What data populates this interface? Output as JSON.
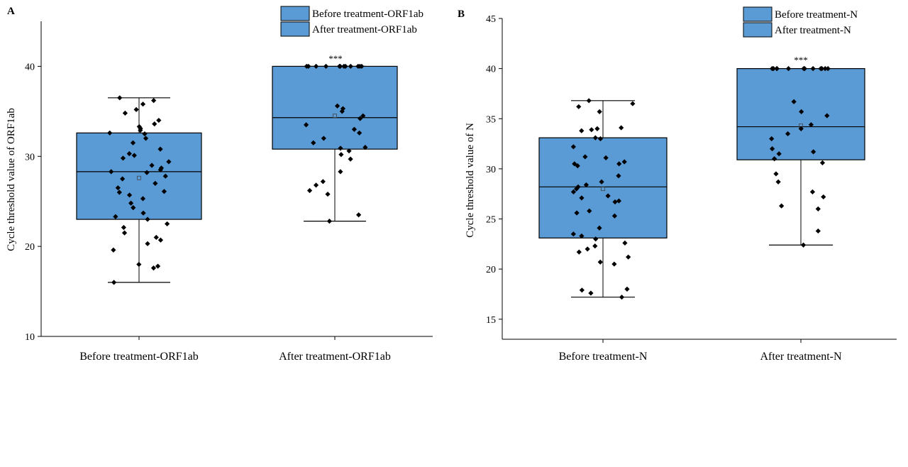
{
  "colors": {
    "box_fill": "#5B9BD5",
    "box_stroke": "#000000",
    "point": "#000000"
  },
  "chart_data": [
    {
      "type": "box",
      "panel_label": "A",
      "ylabel": "Cycle threshold value of ORF1ab",
      "ylim": [
        10,
        45
      ],
      "yticks": [
        10,
        20,
        30,
        40
      ],
      "categories": [
        "Before treatment-ORF1ab",
        "After treatment-ORF1ab"
      ],
      "legend": [
        "Before treatment-ORF1ab",
        "After treatment-ORF1ab"
      ],
      "legend_position": "top-right",
      "significance": [
        {
          "category": "After treatment-ORF1ab",
          "label": "***"
        }
      ],
      "boxes": [
        {
          "name": "Before treatment-ORF1ab",
          "min": 16.0,
          "q1": 23.0,
          "median": 28.3,
          "q3": 32.6,
          "max": 36.5,
          "mean": 27.6
        },
        {
          "name": "After treatment-ORF1ab",
          "min": 22.8,
          "q1": 30.8,
          "median": 34.3,
          "q3": 40.0,
          "max": 40.0,
          "mean": 34.5
        }
      ],
      "points": [
        [
          36.5,
          36.2,
          35.8,
          35.2,
          34.8,
          34.0,
          33.6,
          33.3,
          33.1,
          32.9,
          32.6,
          32.5,
          32.0,
          31.5,
          30.8,
          30.3,
          30.1,
          29.8,
          29.4,
          29.0,
          28.7,
          28.5,
          28.3,
          28.2,
          27.8,
          27.5,
          27.0,
          26.5,
          26.1,
          26.0,
          25.7,
          25.3,
          24.8,
          24.3,
          23.7,
          23.3,
          23.0,
          22.5,
          22.1,
          21.5,
          21.0,
          20.7,
          20.3,
          19.6,
          18.0,
          17.8,
          17.6,
          16.0
        ],
        [
          40.0,
          40.0,
          40.0,
          40.0,
          40.0,
          40.0,
          40.0,
          40.0,
          40.0,
          40.0,
          40.0,
          40.0,
          35.6,
          35.3,
          35.0,
          34.5,
          34.2,
          33.5,
          33.0,
          32.6,
          32.0,
          31.5,
          31.0,
          30.9,
          30.6,
          30.2,
          29.7,
          28.3,
          27.2,
          26.8,
          26.2,
          25.8,
          23.5,
          22.8
        ]
      ]
    },
    {
      "type": "box",
      "panel_label": "B",
      "ylabel": "Cycle threshold value of N",
      "ylim": [
        13,
        45
      ],
      "yticks": [
        15,
        20,
        25,
        30,
        35,
        40,
        45
      ],
      "categories": [
        "Before treatment-N",
        "After treatment-N"
      ],
      "legend": [
        "Before treatment-N",
        "After treatment-N"
      ],
      "legend_position": "top-right",
      "significance": [
        {
          "category": "After treatment-N",
          "label": "***"
        }
      ],
      "boxes": [
        {
          "name": "Before treatment-N",
          "min": 17.2,
          "q1": 23.1,
          "median": 28.2,
          "q3": 33.1,
          "max": 36.8,
          "mean": 28.0
        },
        {
          "name": "After treatment-N",
          "min": 22.4,
          "q1": 30.9,
          "median": 34.2,
          "q3": 40.0,
          "max": 40.0,
          "mean": 34.3
        }
      ],
      "points": [
        [
          36.8,
          36.5,
          36.2,
          35.7,
          34.1,
          34.0,
          33.9,
          33.8,
          33.1,
          33.0,
          32.2,
          31.2,
          31.1,
          30.7,
          30.5,
          30.5,
          30.3,
          29.3,
          28.7,
          28.4,
          28.2,
          28.0,
          27.7,
          27.3,
          27.1,
          26.8,
          26.7,
          25.8,
          25.6,
          25.3,
          24.1,
          23.5,
          23.3,
          23.0,
          22.6,
          22.3,
          22.0,
          21.7,
          21.2,
          20.7,
          20.5,
          18.0,
          17.9,
          17.6,
          17.2
        ],
        [
          40.0,
          40.0,
          40.0,
          40.0,
          40.0,
          40.0,
          40.0,
          40.0,
          40.0,
          40.0,
          40.0,
          40.0,
          36.7,
          35.7,
          35.3,
          34.4,
          34.0,
          33.5,
          33.0,
          32.0,
          31.7,
          31.5,
          31.0,
          30.6,
          29.5,
          28.7,
          27.7,
          27.2,
          26.3,
          26.0,
          23.8,
          22.4
        ]
      ]
    }
  ]
}
